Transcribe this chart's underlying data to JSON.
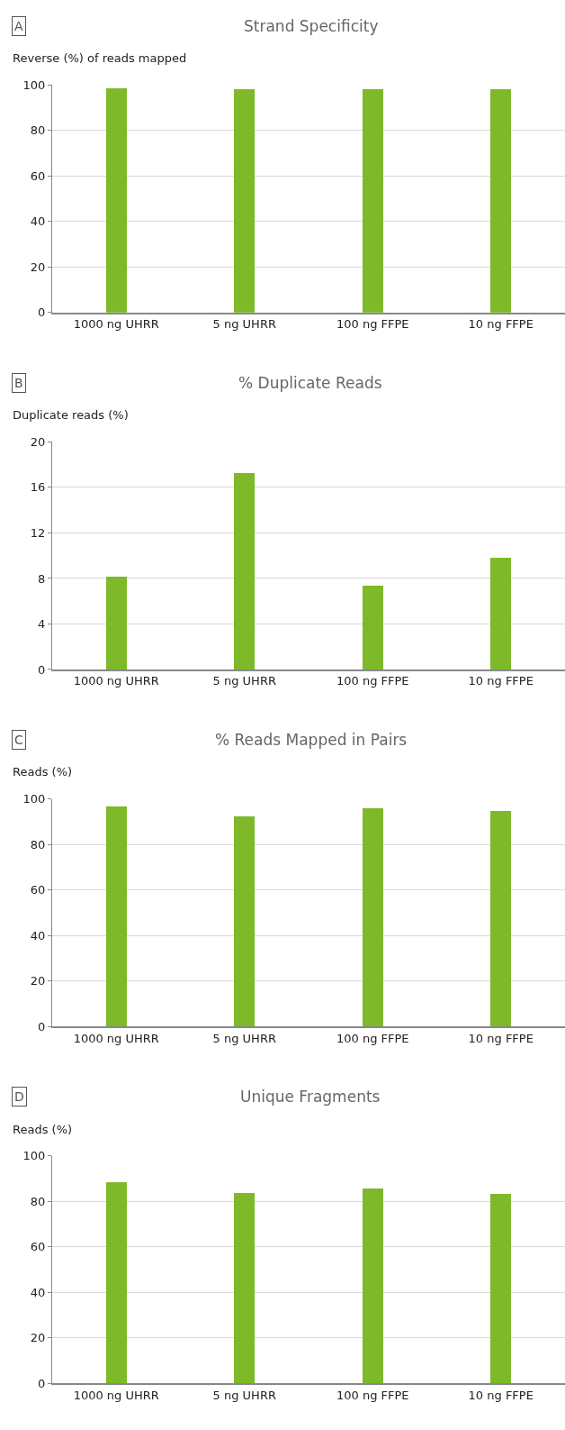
{
  "chart_data": [
    {
      "type": "bar",
      "title": "Strand Specificity",
      "ylabel": "Reverse (%) of reads mapped",
      "annotations": [
        "A"
      ],
      "categories": [
        "1000 ng UHRR",
        "5 ng UHRR",
        "100 ng FFPE",
        "10 ng FFPE"
      ],
      "values": [
        98.4,
        98.1,
        98.1,
        98.1
      ],
      "color": "#7db928",
      "ylim": [
        0,
        100
      ],
      "yticks": [
        0,
        20,
        40,
        60,
        80,
        100
      ],
      "grid": "y"
    },
    {
      "type": "bar",
      "title": "% Duplicate Reads",
      "ylabel": "Duplicate reads (%)",
      "annotations": [
        "B"
      ],
      "categories": [
        "1000 ng UHRR",
        "5 ng UHRR",
        "100 ng FFPE",
        "10 ng FFPE"
      ],
      "values": [
        8.1,
        17.2,
        7.3,
        9.8
      ],
      "color": "#7db928",
      "ylim": [
        0,
        20
      ],
      "yticks": [
        0,
        4,
        8,
        12,
        16,
        20
      ],
      "grid": "y"
    },
    {
      "type": "bar",
      "title": "% Reads Mapped in Pairs",
      "ylabel": "Reads (%)",
      "annotations": [
        "C"
      ],
      "categories": [
        "1000 ng UHRR",
        "5 ng UHRR",
        "100 ng FFPE",
        "10 ng FFPE"
      ],
      "values": [
        96.7,
        92.3,
        95.9,
        94.7
      ],
      "color": "#7db928",
      "ylim": [
        0,
        100
      ],
      "yticks": [
        0,
        20,
        40,
        60,
        80,
        100
      ],
      "grid": "y"
    },
    {
      "type": "bar",
      "title": "Unique Fragments",
      "ylabel": "Reads (%)",
      "annotations": [
        "D"
      ],
      "categories": [
        "1000 ng UHRR",
        "5 ng UHRR",
        "100 ng FFPE",
        "10 ng FFPE"
      ],
      "values": [
        88.5,
        83.8,
        85.9,
        83.5
      ],
      "color": "#7db928",
      "ylim": [
        0,
        100
      ],
      "yticks": [
        0,
        20,
        40,
        60,
        80,
        100
      ],
      "grid": "y"
    }
  ]
}
